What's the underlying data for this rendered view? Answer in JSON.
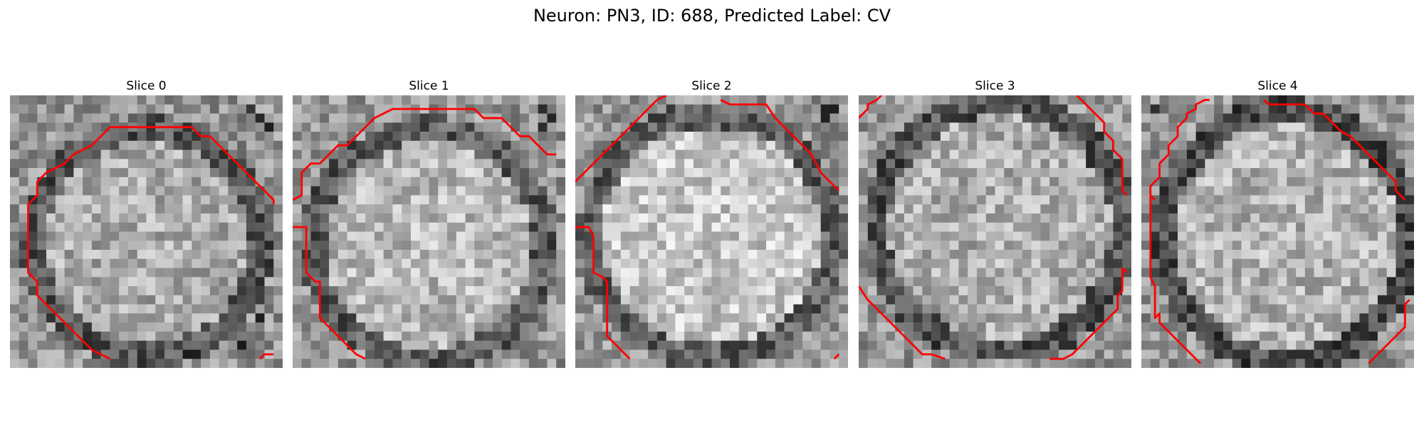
{
  "figure": {
    "title": "Neuron: PN3, ID: 688, Predicted Label: CV",
    "contour_color": "#ff0000"
  },
  "panels": [
    {
      "label": "Slice 0"
    },
    {
      "label": "Slice 1"
    },
    {
      "label": "Slice 2"
    },
    {
      "label": "Slice 3"
    },
    {
      "label": "Slice 4"
    }
  ]
}
